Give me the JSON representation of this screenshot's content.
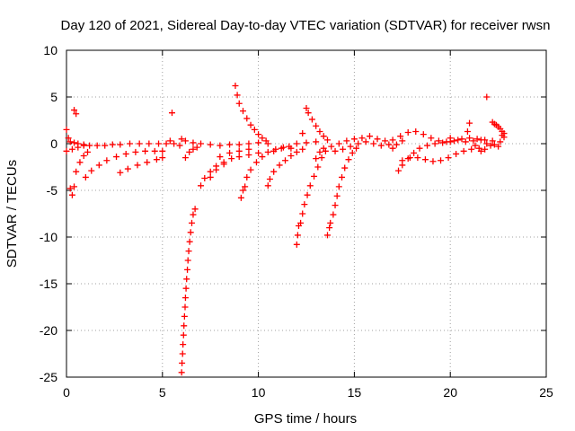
{
  "chart_data": {
    "type": "scatter",
    "title": "Day 120 of 2021, Sidereal Day-to-day VTEC variation (SDTVAR) for receiver rwsn",
    "xlabel": "GPS time / hours",
    "ylabel": "SDTVAR / TECUs",
    "xlim": [
      0,
      25
    ],
    "ylim": [
      -25,
      10
    ],
    "xticks": [
      0,
      5,
      10,
      15,
      20,
      25
    ],
    "yticks": [
      10,
      5,
      0,
      -5,
      -10,
      -15,
      -20,
      -25
    ],
    "grid": true,
    "marker": "plus",
    "color": "#ff0000",
    "series": [
      {
        "name": "sdtvar",
        "points": [
          [
            0.0,
            1.5
          ],
          [
            0.1,
            0.6
          ],
          [
            0.2,
            0.2
          ],
          [
            0.4,
            0.1
          ],
          [
            0.6,
            0.0
          ],
          [
            0.9,
            -0.1
          ],
          [
            1.2,
            -0.2
          ],
          [
            1.6,
            -0.2
          ],
          [
            2.0,
            -0.2
          ],
          [
            2.4,
            -0.1
          ],
          [
            2.8,
            -0.1
          ],
          [
            3.3,
            0.0
          ],
          [
            3.8,
            0.0
          ],
          [
            4.3,
            0.0
          ],
          [
            4.8,
            0.0
          ],
          [
            5.2,
            0.0
          ],
          [
            0.0,
            -0.8
          ],
          [
            0.3,
            -0.6
          ],
          [
            0.6,
            -0.4
          ],
          [
            0.9,
            -0.2
          ],
          [
            0.2,
            -4.8
          ],
          [
            0.3,
            -5.5
          ],
          [
            0.4,
            -4.6
          ],
          [
            0.4,
            3.6
          ],
          [
            0.5,
            3.2
          ],
          [
            0.5,
            -3.0
          ],
          [
            0.7,
            -2.0
          ],
          [
            0.9,
            -1.3
          ],
          [
            1.1,
            -0.9
          ],
          [
            1.0,
            -3.6
          ],
          [
            1.3,
            -2.9
          ],
          [
            1.7,
            -2.3
          ],
          [
            2.1,
            -1.8
          ],
          [
            2.6,
            -1.4
          ],
          [
            3.1,
            -1.1
          ],
          [
            3.6,
            -0.9
          ],
          [
            4.1,
            -0.8
          ],
          [
            4.6,
            -0.8
          ],
          [
            5.0,
            -0.8
          ],
          [
            2.8,
            -3.1
          ],
          [
            3.2,
            -2.7
          ],
          [
            3.7,
            -2.3
          ],
          [
            4.2,
            -2.0
          ],
          [
            4.7,
            -1.7
          ],
          [
            5.0,
            -1.5
          ],
          [
            5.5,
            3.3
          ],
          [
            5.4,
            0.3
          ],
          [
            5.6,
            0.0
          ],
          [
            5.9,
            -0.2
          ],
          [
            6.0,
            0.5
          ],
          [
            6.2,
            0.3
          ],
          [
            6.6,
            0.1
          ],
          [
            7.0,
            0.0
          ],
          [
            7.5,
            -0.1
          ],
          [
            8.0,
            -0.2
          ],
          [
            8.5,
            -0.1
          ],
          [
            9.0,
            -0.1
          ],
          [
            9.5,
            0.0
          ],
          [
            10.0,
            0.1
          ],
          [
            10.5,
            0.0
          ],
          [
            6.0,
            -24.5
          ],
          [
            6.02,
            -23.5
          ],
          [
            6.05,
            -22.5
          ],
          [
            6.07,
            -21.5
          ],
          [
            6.1,
            -20.5
          ],
          [
            6.12,
            -19.5
          ],
          [
            6.15,
            -18.5
          ],
          [
            6.18,
            -17.5
          ],
          [
            6.2,
            -16.5
          ],
          [
            6.23,
            -15.5
          ],
          [
            6.26,
            -14.5
          ],
          [
            6.3,
            -13.5
          ],
          [
            6.33,
            -12.5
          ],
          [
            6.37,
            -11.5
          ],
          [
            6.42,
            -10.5
          ],
          [
            6.47,
            -9.5
          ],
          [
            6.53,
            -8.5
          ],
          [
            6.6,
            -7.6
          ],
          [
            6.7,
            -7.0
          ],
          [
            6.2,
            -1.5
          ],
          [
            6.4,
            -0.9
          ],
          [
            6.6,
            -0.6
          ],
          [
            6.8,
            -0.4
          ],
          [
            7.0,
            -4.5
          ],
          [
            7.2,
            -3.7
          ],
          [
            7.5,
            -3.0
          ],
          [
            7.8,
            -2.4
          ],
          [
            8.2,
            -2.0
          ],
          [
            8.6,
            -1.6
          ],
          [
            9.0,
            -1.4
          ],
          [
            9.5,
            -1.2
          ],
          [
            10.0,
            -1.0
          ],
          [
            7.5,
            -3.6
          ],
          [
            7.8,
            -2.8
          ],
          [
            8.2,
            -2.2
          ],
          [
            8.0,
            -1.4
          ],
          [
            8.5,
            -1.0
          ],
          [
            9.0,
            -0.8
          ],
          [
            9.5,
            -0.6
          ],
          [
            8.8,
            6.2
          ],
          [
            8.9,
            5.2
          ],
          [
            9.0,
            4.3
          ],
          [
            9.2,
            3.5
          ],
          [
            9.4,
            2.7
          ],
          [
            9.6,
            2.0
          ],
          [
            9.8,
            1.5
          ],
          [
            10.0,
            1.0
          ],
          [
            10.2,
            0.6
          ],
          [
            10.4,
            0.3
          ],
          [
            9.1,
            -5.8
          ],
          [
            9.2,
            -5.0
          ],
          [
            9.3,
            -4.6
          ],
          [
            9.4,
            -3.6
          ],
          [
            9.6,
            -2.8
          ],
          [
            9.9,
            -2.0
          ],
          [
            10.2,
            -1.4
          ],
          [
            10.5,
            -0.9
          ],
          [
            10.9,
            -0.6
          ],
          [
            11.3,
            -0.4
          ],
          [
            11.7,
            -0.5
          ],
          [
            10.5,
            -4.5
          ],
          [
            10.6,
            -3.8
          ],
          [
            10.8,
            -3.0
          ],
          [
            11.1,
            -2.3
          ],
          [
            11.4,
            -1.8
          ],
          [
            11.7,
            -1.3
          ],
          [
            12.0,
            -0.9
          ],
          [
            12.3,
            -0.6
          ],
          [
            10.8,
            -0.8
          ],
          [
            11.2,
            -0.5
          ],
          [
            11.6,
            -0.3
          ],
          [
            12.0,
            0.0
          ],
          [
            12.5,
            0.1
          ],
          [
            13.0,
            0.2
          ],
          [
            12.0,
            -10.8
          ],
          [
            12.05,
            -9.8
          ],
          [
            12.1,
            -8.8
          ],
          [
            12.2,
            -8.5
          ],
          [
            12.3,
            -7.5
          ],
          [
            12.4,
            -6.5
          ],
          [
            12.55,
            -5.5
          ],
          [
            12.7,
            -4.5
          ],
          [
            12.9,
            -3.5
          ],
          [
            13.1,
            -2.5
          ],
          [
            13.3,
            -1.5
          ],
          [
            13.5,
            -0.8
          ],
          [
            12.3,
            1.1
          ],
          [
            12.5,
            3.8
          ],
          [
            12.6,
            3.3
          ],
          [
            12.8,
            2.6
          ],
          [
            13.0,
            1.9
          ],
          [
            13.2,
            1.3
          ],
          [
            13.4,
            0.8
          ],
          [
            13.6,
            0.4
          ],
          [
            13.0,
            -1.6
          ],
          [
            13.2,
            -0.9
          ],
          [
            13.4,
            -0.5
          ],
          [
            13.6,
            -9.8
          ],
          [
            13.7,
            -9.0
          ],
          [
            13.75,
            -8.5
          ],
          [
            13.9,
            -7.6
          ],
          [
            14.0,
            -6.6
          ],
          [
            14.1,
            -5.6
          ],
          [
            14.2,
            -4.6
          ],
          [
            14.35,
            -3.6
          ],
          [
            14.5,
            -2.6
          ],
          [
            14.7,
            -1.7
          ],
          [
            14.9,
            -1.0
          ],
          [
            15.1,
            -0.5
          ],
          [
            13.8,
            -0.3
          ],
          [
            14.2,
            0.0
          ],
          [
            14.6,
            0.3
          ],
          [
            15.0,
            0.5
          ],
          [
            15.4,
            0.6
          ],
          [
            15.8,
            0.8
          ],
          [
            16.2,
            0.5
          ],
          [
            16.6,
            0.3
          ],
          [
            17.0,
            0.4
          ],
          [
            17.4,
            0.8
          ],
          [
            17.8,
            1.2
          ],
          [
            18.2,
            1.3
          ],
          [
            18.6,
            1.0
          ],
          [
            19.0,
            0.6
          ],
          [
            19.4,
            0.3
          ],
          [
            19.8,
            0.2
          ],
          [
            20.2,
            0.3
          ],
          [
            20.6,
            0.5
          ],
          [
            21.0,
            0.6
          ],
          [
            21.4,
            0.5
          ],
          [
            21.8,
            0.4
          ],
          [
            22.2,
            0.3
          ],
          [
            22.6,
            0.2
          ],
          [
            14.0,
            -0.8
          ],
          [
            14.4,
            -0.6
          ],
          [
            14.8,
            -0.3
          ],
          [
            15.2,
            0.0
          ],
          [
            15.6,
            0.2
          ],
          [
            16.0,
            0.0
          ],
          [
            16.4,
            -0.2
          ],
          [
            16.8,
            -0.1
          ],
          [
            17.0,
            -0.5
          ],
          [
            17.2,
            -0.1
          ],
          [
            17.5,
            0.3
          ],
          [
            17.3,
            -2.9
          ],
          [
            17.5,
            -2.3
          ],
          [
            17.8,
            -1.6
          ],
          [
            18.1,
            -1.0
          ],
          [
            18.4,
            -0.5
          ],
          [
            18.8,
            -0.2
          ],
          [
            19.2,
            0.0
          ],
          [
            19.6,
            0.1
          ],
          [
            20.0,
            0.2
          ],
          [
            17.5,
            -1.8
          ],
          [
            17.9,
            -1.5
          ],
          [
            18.3,
            -1.5
          ],
          [
            18.7,
            -1.7
          ],
          [
            19.1,
            -1.9
          ],
          [
            19.5,
            -1.8
          ],
          [
            19.9,
            -1.5
          ],
          [
            20.3,
            -1.1
          ],
          [
            20.7,
            -0.8
          ],
          [
            21.1,
            -0.6
          ],
          [
            21.5,
            -0.5
          ],
          [
            20.0,
            0.6
          ],
          [
            20.4,
            0.4
          ],
          [
            20.8,
            0.2
          ],
          [
            21.2,
            0.3
          ],
          [
            21.6,
            0.4
          ],
          [
            20.9,
            1.3
          ],
          [
            21.0,
            2.2
          ],
          [
            21.3,
            -0.2
          ],
          [
            21.6,
            -0.8
          ],
          [
            21.8,
            -0.6
          ],
          [
            21.9,
            5.0
          ],
          [
            21.9,
            0.0
          ],
          [
            22.1,
            -0.2
          ],
          [
            22.3,
            -0.1
          ],
          [
            22.5,
            -0.3
          ],
          [
            22.2,
            2.3
          ],
          [
            22.3,
            2.1
          ],
          [
            22.4,
            2.0
          ],
          [
            22.5,
            1.8
          ],
          [
            22.6,
            1.6
          ],
          [
            22.7,
            1.3
          ],
          [
            22.8,
            1.1
          ],
          [
            22.7,
            0.9
          ],
          [
            22.8,
            0.7
          ]
        ]
      }
    ]
  }
}
